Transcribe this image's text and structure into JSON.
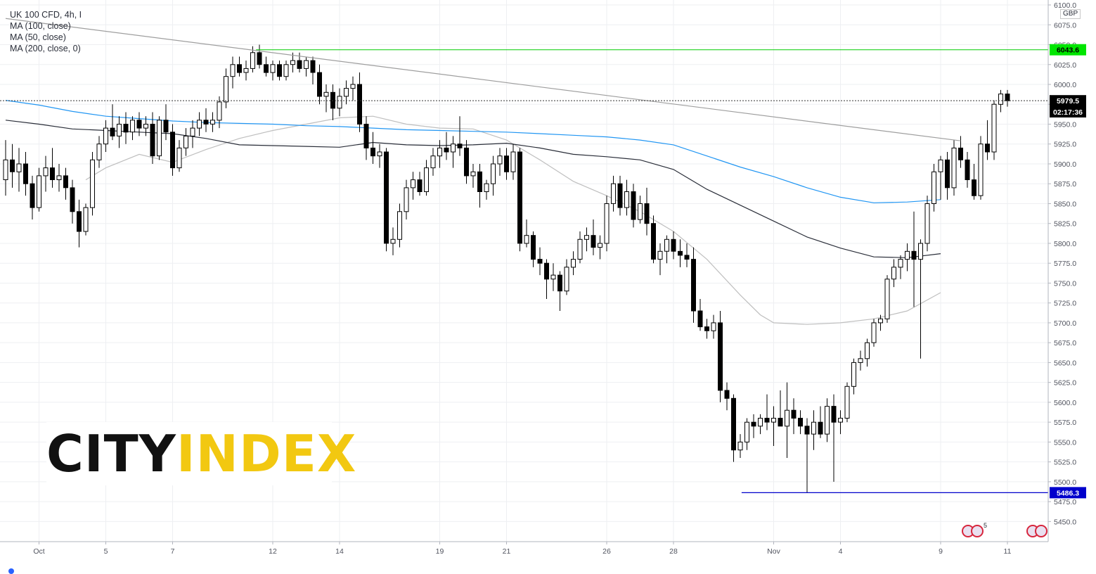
{
  "legend": {
    "title": "UK 100 CFD, 4h, I",
    "ma100": "MA (100, close)",
    "ma50": "MA (50, close)",
    "ma200": "MA (200, close, 0)"
  },
  "currency": "GBP",
  "brand": {
    "part1": "CITY",
    "part2": "INDEX"
  },
  "badges": [
    {
      "value": "6043.6",
      "price": 6043.6,
      "bg": "#00e600",
      "fg": "#000000"
    },
    {
      "value": "5979.5",
      "price": 5979.5,
      "bg": "#000000",
      "fg": "#ffffff"
    },
    {
      "value": "02:17:36",
      "price": 5965.5,
      "bg": "#000000",
      "fg": "#ffffff"
    },
    {
      "value": "5486.3",
      "price": 5486.3,
      "bg": "#0000cc",
      "fg": "#ffffff"
    }
  ],
  "event_count": "5",
  "chart_data": {
    "type": "candlestick",
    "title": "UK 100 CFD, 4h, I",
    "ylim": [
      5425,
      6100
    ],
    "y_ticks": [
      5450,
      5475,
      5500,
      5525,
      5550,
      5575,
      5600,
      5625,
      5650,
      5675,
      5700,
      5725,
      5750,
      5775,
      5800,
      5825,
      5850,
      5875,
      5900,
      5925,
      5950,
      5975,
      6000,
      6025,
      6050,
      6075,
      6100
    ],
    "x_range": [
      0,
      153
    ],
    "x_labels": [
      {
        "bar": 5,
        "label": "Oct"
      },
      {
        "bar": 15,
        "label": "5"
      },
      {
        "bar": 25,
        "label": "7"
      },
      {
        "bar": 40,
        "label": "12"
      },
      {
        "bar": 50,
        "label": "14"
      },
      {
        "bar": 65,
        "label": "19"
      },
      {
        "bar": 75,
        "label": "21"
      },
      {
        "bar": 90,
        "label": "26"
      },
      {
        "bar": 100,
        "label": "28"
      },
      {
        "bar": 115,
        "label": "Nov"
      },
      {
        "bar": 125,
        "label": "4"
      },
      {
        "bar": 140,
        "label": "9"
      },
      {
        "bar": 150,
        "label": "11"
      }
    ],
    "grid": true,
    "current_price": 5979.5,
    "resistance": {
      "value": 6043.6,
      "from_bar": 37.5
    },
    "support": {
      "value": 5486.3,
      "from_bar": 110.2
    },
    "trendline": {
      "start": [
        0,
        6083
      ],
      "end": [
        143,
        5929
      ]
    },
    "ma100": {
      "color": "#2196f3",
      "bars": [
        0,
        5,
        10,
        15,
        20,
        25,
        30,
        35,
        40,
        45,
        50,
        55,
        60,
        65,
        70,
        75,
        80,
        85,
        90,
        95,
        100,
        105,
        110,
        115,
        120,
        125,
        130,
        135,
        140
      ],
      "values": [
        5980,
        5974,
        5966,
        5960,
        5957,
        5954,
        5952,
        5951,
        5950,
        5948,
        5947,
        5945,
        5943,
        5942,
        5941,
        5940,
        5938,
        5936,
        5934,
        5930,
        5924,
        5910,
        5896,
        5884,
        5870,
        5858,
        5851,
        5852,
        5855
      ]
    },
    "ma200": {
      "color": "#2a2e39",
      "bars": [
        0,
        5,
        10,
        15,
        20,
        25,
        30,
        35,
        40,
        45,
        50,
        55,
        60,
        65,
        70,
        75,
        80,
        85,
        90,
        95,
        100,
        105,
        110,
        115,
        120,
        125,
        130,
        135,
        140
      ],
      "values": [
        5955,
        5950,
        5944,
        5942,
        5940,
        5938,
        5932,
        5924,
        5923,
        5922,
        5921,
        5927,
        5924,
        5923,
        5924,
        5926,
        5920,
        5912,
        5909,
        5905,
        5893,
        5868,
        5848,
        5828,
        5808,
        5794,
        5783,
        5782,
        5787
      ]
    },
    "ma50": {
      "color": "#bfbfbf",
      "bars": [
        12,
        15,
        20,
        25,
        30,
        35,
        40,
        45,
        50,
        55,
        60,
        65,
        70,
        75,
        80,
        85,
        90,
        95,
        100,
        105,
        110,
        113,
        115,
        120,
        125,
        130,
        135,
        140
      ],
      "values": [
        5880,
        5895,
        5912,
        5902,
        5918,
        5932,
        5942,
        5950,
        5958,
        5960,
        5950,
        5945,
        5944,
        5930,
        5905,
        5878,
        5860,
        5840,
        5815,
        5780,
        5735,
        5710,
        5700,
        5698,
        5700,
        5705,
        5715,
        5738
      ]
    },
    "candles": [
      {
        "o": 5880,
        "h": 5930,
        "l": 5860,
        "c": 5905
      },
      {
        "o": 5905,
        "h": 5925,
        "l": 5870,
        "c": 5890
      },
      {
        "o": 5890,
        "h": 5920,
        "l": 5865,
        "c": 5900
      },
      {
        "o": 5900,
        "h": 5915,
        "l": 5860,
        "c": 5875
      },
      {
        "o": 5875,
        "h": 5885,
        "l": 5830,
        "c": 5845
      },
      {
        "o": 5845,
        "h": 5895,
        "l": 5840,
        "c": 5885
      },
      {
        "o": 5885,
        "h": 5910,
        "l": 5865,
        "c": 5895
      },
      {
        "o": 5895,
        "h": 5920,
        "l": 5870,
        "c": 5880
      },
      {
        "o": 5880,
        "h": 5900,
        "l": 5865,
        "c": 5885
      },
      {
        "o": 5885,
        "h": 5895,
        "l": 5855,
        "c": 5870
      },
      {
        "o": 5870,
        "h": 5880,
        "l": 5825,
        "c": 5840
      },
      {
        "o": 5840,
        "h": 5855,
        "l": 5795,
        "c": 5815
      },
      {
        "o": 5815,
        "h": 5850,
        "l": 5810,
        "c": 5845
      },
      {
        "o": 5845,
        "h": 5915,
        "l": 5835,
        "c": 5905
      },
      {
        "o": 5905,
        "h": 5935,
        "l": 5895,
        "c": 5925
      },
      {
        "o": 5925,
        "h": 5955,
        "l": 5915,
        "c": 5945
      },
      {
        "o": 5945,
        "h": 5975,
        "l": 5930,
        "c": 5935
      },
      {
        "o": 5935,
        "h": 5960,
        "l": 5920,
        "c": 5950
      },
      {
        "o": 5950,
        "h": 5965,
        "l": 5925,
        "c": 5940
      },
      {
        "o": 5940,
        "h": 5960,
        "l": 5930,
        "c": 5955
      },
      {
        "o": 5955,
        "h": 5965,
        "l": 5935,
        "c": 5945
      },
      {
        "o": 5945,
        "h": 5960,
        "l": 5935,
        "c": 5950
      },
      {
        "o": 5950,
        "h": 5965,
        "l": 5900,
        "c": 5910
      },
      {
        "o": 5910,
        "h": 5960,
        "l": 5905,
        "c": 5955
      },
      {
        "o": 5955,
        "h": 5975,
        "l": 5930,
        "c": 5940
      },
      {
        "o": 5940,
        "h": 5950,
        "l": 5885,
        "c": 5895
      },
      {
        "o": 5895,
        "h": 5930,
        "l": 5890,
        "c": 5920
      },
      {
        "o": 5920,
        "h": 5945,
        "l": 5910,
        "c": 5935
      },
      {
        "o": 5935,
        "h": 5955,
        "l": 5920,
        "c": 5945
      },
      {
        "o": 5945,
        "h": 5965,
        "l": 5935,
        "c": 5955
      },
      {
        "o": 5955,
        "h": 5970,
        "l": 5940,
        "c": 5950
      },
      {
        "o": 5950,
        "h": 5965,
        "l": 5940,
        "c": 5955
      },
      {
        "o": 5955,
        "h": 5985,
        "l": 5945,
        "c": 5978
      },
      {
        "o": 5978,
        "h": 6020,
        "l": 5970,
        "c": 6010
      },
      {
        "o": 6010,
        "h": 6035,
        "l": 5995,
        "c": 6025
      },
      {
        "o": 6025,
        "h": 6035,
        "l": 6010,
        "c": 6015
      },
      {
        "o": 6015,
        "h": 6030,
        "l": 6005,
        "c": 6020
      },
      {
        "o": 6020,
        "h": 6048,
        "l": 6015,
        "c": 6040
      },
      {
        "o": 6040,
        "h": 6050,
        "l": 6020,
        "c": 6025
      },
      {
        "o": 6025,
        "h": 6035,
        "l": 6010,
        "c": 6015
      },
      {
        "o": 6015,
        "h": 6030,
        "l": 6005,
        "c": 6025
      },
      {
        "o": 6025,
        "h": 6030,
        "l": 6005,
        "c": 6010
      },
      {
        "o": 6010,
        "h": 6030,
        "l": 6005,
        "c": 6025
      },
      {
        "o": 6025,
        "h": 6040,
        "l": 6015,
        "c": 6030
      },
      {
        "o": 6030,
        "h": 6040,
        "l": 6015,
        "c": 6020
      },
      {
        "o": 6020,
        "h": 6035,
        "l": 6010,
        "c": 6030
      },
      {
        "o": 6030,
        "h": 6035,
        "l": 6000,
        "c": 6015
      },
      {
        "o": 6015,
        "h": 6025,
        "l": 5975,
        "c": 5985
      },
      {
        "o": 5985,
        "h": 6000,
        "l": 5965,
        "c": 5990
      },
      {
        "o": 5990,
        "h": 6000,
        "l": 5955,
        "c": 5970
      },
      {
        "o": 5970,
        "h": 5995,
        "l": 5960,
        "c": 5985
      },
      {
        "o": 5985,
        "h": 6005,
        "l": 5975,
        "c": 5995
      },
      {
        "o": 5995,
        "h": 6010,
        "l": 5980,
        "c": 6000
      },
      {
        "o": 6000,
        "h": 6015,
        "l": 5940,
        "c": 5950
      },
      {
        "o": 5950,
        "h": 5960,
        "l": 5905,
        "c": 5920
      },
      {
        "o": 5920,
        "h": 5940,
        "l": 5900,
        "c": 5910
      },
      {
        "o": 5910,
        "h": 5925,
        "l": 5895,
        "c": 5915
      },
      {
        "o": 5915,
        "h": 5920,
        "l": 5790,
        "c": 5800
      },
      {
        "o": 5800,
        "h": 5820,
        "l": 5785,
        "c": 5805
      },
      {
        "o": 5805,
        "h": 5850,
        "l": 5795,
        "c": 5840
      },
      {
        "o": 5840,
        "h": 5880,
        "l": 5830,
        "c": 5870
      },
      {
        "o": 5870,
        "h": 5890,
        "l": 5855,
        "c": 5880
      },
      {
        "o": 5880,
        "h": 5890,
        "l": 5860,
        "c": 5865
      },
      {
        "o": 5865,
        "h": 5905,
        "l": 5860,
        "c": 5895
      },
      {
        "o": 5895,
        "h": 5920,
        "l": 5885,
        "c": 5910
      },
      {
        "o": 5910,
        "h": 5930,
        "l": 5895,
        "c": 5920
      },
      {
        "o": 5920,
        "h": 5940,
        "l": 5905,
        "c": 5915
      },
      {
        "o": 5915,
        "h": 5935,
        "l": 5895,
        "c": 5925
      },
      {
        "o": 5925,
        "h": 5960,
        "l": 5910,
        "c": 5920
      },
      {
        "o": 5920,
        "h": 5930,
        "l": 5875,
        "c": 5885
      },
      {
        "o": 5885,
        "h": 5900,
        "l": 5870,
        "c": 5890
      },
      {
        "o": 5890,
        "h": 5900,
        "l": 5845,
        "c": 5865
      },
      {
        "o": 5865,
        "h": 5880,
        "l": 5855,
        "c": 5875
      },
      {
        "o": 5875,
        "h": 5910,
        "l": 5860,
        "c": 5900
      },
      {
        "o": 5900,
        "h": 5920,
        "l": 5885,
        "c": 5910
      },
      {
        "o": 5910,
        "h": 5920,
        "l": 5880,
        "c": 5890
      },
      {
        "o": 5890,
        "h": 5925,
        "l": 5880,
        "c": 5915
      },
      {
        "o": 5915,
        "h": 5920,
        "l": 5790,
        "c": 5800
      },
      {
        "o": 5800,
        "h": 5830,
        "l": 5795,
        "c": 5810
      },
      {
        "o": 5810,
        "h": 5815,
        "l": 5770,
        "c": 5780
      },
      {
        "o": 5780,
        "h": 5795,
        "l": 5760,
        "c": 5775
      },
      {
        "o": 5775,
        "h": 5780,
        "l": 5730,
        "c": 5755
      },
      {
        "o": 5755,
        "h": 5775,
        "l": 5740,
        "c": 5760
      },
      {
        "o": 5760,
        "h": 5765,
        "l": 5715,
        "c": 5740
      },
      {
        "o": 5740,
        "h": 5780,
        "l": 5735,
        "c": 5770
      },
      {
        "o": 5770,
        "h": 5790,
        "l": 5760,
        "c": 5780
      },
      {
        "o": 5780,
        "h": 5815,
        "l": 5775,
        "c": 5805
      },
      {
        "o": 5805,
        "h": 5820,
        "l": 5790,
        "c": 5810
      },
      {
        "o": 5810,
        "h": 5830,
        "l": 5785,
        "c": 5795
      },
      {
        "o": 5795,
        "h": 5810,
        "l": 5780,
        "c": 5800
      },
      {
        "o": 5800,
        "h": 5860,
        "l": 5790,
        "c": 5850
      },
      {
        "o": 5850,
        "h": 5885,
        "l": 5840,
        "c": 5875
      },
      {
        "o": 5875,
        "h": 5885,
        "l": 5835,
        "c": 5845
      },
      {
        "o": 5845,
        "h": 5880,
        "l": 5835,
        "c": 5865
      },
      {
        "o": 5865,
        "h": 5875,
        "l": 5820,
        "c": 5830
      },
      {
        "o": 5830,
        "h": 5860,
        "l": 5825,
        "c": 5850
      },
      {
        "o": 5850,
        "h": 5870,
        "l": 5810,
        "c": 5825
      },
      {
        "o": 5825,
        "h": 5835,
        "l": 5775,
        "c": 5780
      },
      {
        "o": 5780,
        "h": 5800,
        "l": 5760,
        "c": 5790
      },
      {
        "o": 5790,
        "h": 5810,
        "l": 5775,
        "c": 5805
      },
      {
        "o": 5805,
        "h": 5815,
        "l": 5780,
        "c": 5790
      },
      {
        "o": 5790,
        "h": 5805,
        "l": 5770,
        "c": 5785
      },
      {
        "o": 5785,
        "h": 5800,
        "l": 5770,
        "c": 5780
      },
      {
        "o": 5780,
        "h": 5795,
        "l": 5700,
        "c": 5715
      },
      {
        "o": 5715,
        "h": 5730,
        "l": 5690,
        "c": 5695
      },
      {
        "o": 5695,
        "h": 5705,
        "l": 5680,
        "c": 5690
      },
      {
        "o": 5690,
        "h": 5710,
        "l": 5680,
        "c": 5700
      },
      {
        "o": 5700,
        "h": 5715,
        "l": 5600,
        "c": 5615
      },
      {
        "o": 5615,
        "h": 5625,
        "l": 5590,
        "c": 5605
      },
      {
        "o": 5605,
        "h": 5610,
        "l": 5525,
        "c": 5540
      },
      {
        "o": 5540,
        "h": 5560,
        "l": 5530,
        "c": 5550
      },
      {
        "o": 5550,
        "h": 5580,
        "l": 5540,
        "c": 5575
      },
      {
        "o": 5575,
        "h": 5585,
        "l": 5555,
        "c": 5570
      },
      {
        "o": 5570,
        "h": 5585,
        "l": 5560,
        "c": 5580
      },
      {
        "o": 5580,
        "h": 5610,
        "l": 5565,
        "c": 5575
      },
      {
        "o": 5575,
        "h": 5595,
        "l": 5545,
        "c": 5580
      },
      {
        "o": 5580,
        "h": 5615,
        "l": 5570,
        "c": 5570
      },
      {
        "o": 5570,
        "h": 5625,
        "l": 5530,
        "c": 5590
      },
      {
        "o": 5590,
        "h": 5605,
        "l": 5560,
        "c": 5580
      },
      {
        "o": 5580,
        "h": 5590,
        "l": 5560,
        "c": 5570
      },
      {
        "o": 5570,
        "h": 5580,
        "l": 5486,
        "c": 5560
      },
      {
        "o": 5560,
        "h": 5590,
        "l": 5540,
        "c": 5575
      },
      {
        "o": 5575,
        "h": 5595,
        "l": 5555,
        "c": 5560
      },
      {
        "o": 5560,
        "h": 5605,
        "l": 5550,
        "c": 5595
      },
      {
        "o": 5595,
        "h": 5610,
        "l": 5500,
        "c": 5575
      },
      {
        "o": 5575,
        "h": 5590,
        "l": 5560,
        "c": 5580
      },
      {
        "o": 5580,
        "h": 5625,
        "l": 5575,
        "c": 5620
      },
      {
        "o": 5620,
        "h": 5655,
        "l": 5610,
        "c": 5650
      },
      {
        "o": 5650,
        "h": 5665,
        "l": 5640,
        "c": 5655
      },
      {
        "o": 5655,
        "h": 5680,
        "l": 5645,
        "c": 5675
      },
      {
        "o": 5675,
        "h": 5705,
        "l": 5670,
        "c": 5700
      },
      {
        "o": 5700,
        "h": 5710,
        "l": 5690,
        "c": 5705
      },
      {
        "o": 5705,
        "h": 5760,
        "l": 5700,
        "c": 5755
      },
      {
        "o": 5755,
        "h": 5780,
        "l": 5745,
        "c": 5770
      },
      {
        "o": 5770,
        "h": 5785,
        "l": 5755,
        "c": 5780
      },
      {
        "o": 5780,
        "h": 5800,
        "l": 5765,
        "c": 5790
      },
      {
        "o": 5790,
        "h": 5840,
        "l": 5720,
        "c": 5780
      },
      {
        "o": 5780,
        "h": 5805,
        "l": 5655,
        "c": 5800
      },
      {
        "o": 5800,
        "h": 5860,
        "l": 5790,
        "c": 5850
      },
      {
        "o": 5850,
        "h": 5900,
        "l": 5840,
        "c": 5890
      },
      {
        "o": 5890,
        "h": 5910,
        "l": 5855,
        "c": 5905
      },
      {
        "o": 5905,
        "h": 5915,
        "l": 5855,
        "c": 5870
      },
      {
        "o": 5870,
        "h": 5930,
        "l": 5860,
        "c": 5920
      },
      {
        "o": 5920,
        "h": 5935,
        "l": 5895,
        "c": 5905
      },
      {
        "o": 5905,
        "h": 5915,
        "l": 5870,
        "c": 5880
      },
      {
        "o": 5880,
        "h": 5900,
        "l": 5855,
        "c": 5860
      },
      {
        "o": 5860,
        "h": 5935,
        "l": 5855,
        "c": 5925
      },
      {
        "o": 5925,
        "h": 5955,
        "l": 5905,
        "c": 5915
      },
      {
        "o": 5915,
        "h": 5980,
        "l": 5905,
        "c": 5975
      },
      {
        "o": 5975,
        "h": 5993,
        "l": 5965,
        "c": 5988
      },
      {
        "o": 5988,
        "h": 5993,
        "l": 5972,
        "c": 5979.5
      }
    ]
  }
}
